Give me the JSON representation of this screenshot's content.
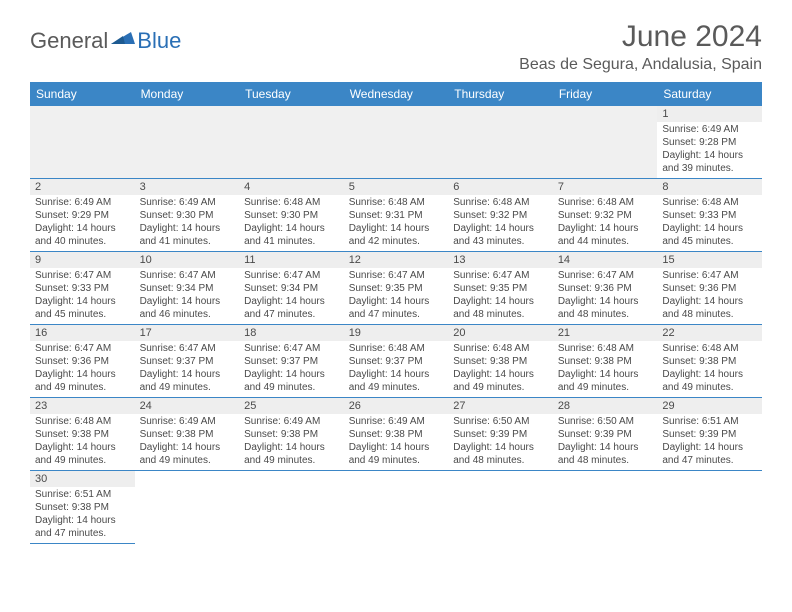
{
  "logo": {
    "general": "General",
    "blue": "Blue"
  },
  "title": "June 2024",
  "location": "Beas de Segura, Andalusia, Spain",
  "colors": {
    "header_bg": "#3b86c6",
    "header_text": "#ffffff",
    "border": "#3b86c6",
    "daynum_bg": "#eeeeee",
    "text": "#4a4a4a",
    "logo_gray": "#5a5a5a",
    "logo_blue": "#2a6fb5",
    "blank_row_bg": "#f0f0f0"
  },
  "weekdays": [
    "Sunday",
    "Monday",
    "Tuesday",
    "Wednesday",
    "Thursday",
    "Friday",
    "Saturday"
  ],
  "weeks": [
    [
      null,
      null,
      null,
      null,
      null,
      null,
      {
        "n": "1",
        "sunrise": "6:49 AM",
        "sunset": "9:28 PM",
        "daylight": "14 hours and 39 minutes."
      }
    ],
    [
      {
        "n": "2",
        "sunrise": "6:49 AM",
        "sunset": "9:29 PM",
        "daylight": "14 hours and 40 minutes."
      },
      {
        "n": "3",
        "sunrise": "6:49 AM",
        "sunset": "9:30 PM",
        "daylight": "14 hours and 41 minutes."
      },
      {
        "n": "4",
        "sunrise": "6:48 AM",
        "sunset": "9:30 PM",
        "daylight": "14 hours and 41 minutes."
      },
      {
        "n": "5",
        "sunrise": "6:48 AM",
        "sunset": "9:31 PM",
        "daylight": "14 hours and 42 minutes."
      },
      {
        "n": "6",
        "sunrise": "6:48 AM",
        "sunset": "9:32 PM",
        "daylight": "14 hours and 43 minutes."
      },
      {
        "n": "7",
        "sunrise": "6:48 AM",
        "sunset": "9:32 PM",
        "daylight": "14 hours and 44 minutes."
      },
      {
        "n": "8",
        "sunrise": "6:48 AM",
        "sunset": "9:33 PM",
        "daylight": "14 hours and 45 minutes."
      }
    ],
    [
      {
        "n": "9",
        "sunrise": "6:47 AM",
        "sunset": "9:33 PM",
        "daylight": "14 hours and 45 minutes."
      },
      {
        "n": "10",
        "sunrise": "6:47 AM",
        "sunset": "9:34 PM",
        "daylight": "14 hours and 46 minutes."
      },
      {
        "n": "11",
        "sunrise": "6:47 AM",
        "sunset": "9:34 PM",
        "daylight": "14 hours and 47 minutes."
      },
      {
        "n": "12",
        "sunrise": "6:47 AM",
        "sunset": "9:35 PM",
        "daylight": "14 hours and 47 minutes."
      },
      {
        "n": "13",
        "sunrise": "6:47 AM",
        "sunset": "9:35 PM",
        "daylight": "14 hours and 48 minutes."
      },
      {
        "n": "14",
        "sunrise": "6:47 AM",
        "sunset": "9:36 PM",
        "daylight": "14 hours and 48 minutes."
      },
      {
        "n": "15",
        "sunrise": "6:47 AM",
        "sunset": "9:36 PM",
        "daylight": "14 hours and 48 minutes."
      }
    ],
    [
      {
        "n": "16",
        "sunrise": "6:47 AM",
        "sunset": "9:36 PM",
        "daylight": "14 hours and 49 minutes."
      },
      {
        "n": "17",
        "sunrise": "6:47 AM",
        "sunset": "9:37 PM",
        "daylight": "14 hours and 49 minutes."
      },
      {
        "n": "18",
        "sunrise": "6:47 AM",
        "sunset": "9:37 PM",
        "daylight": "14 hours and 49 minutes."
      },
      {
        "n": "19",
        "sunrise": "6:48 AM",
        "sunset": "9:37 PM",
        "daylight": "14 hours and 49 minutes."
      },
      {
        "n": "20",
        "sunrise": "6:48 AM",
        "sunset": "9:38 PM",
        "daylight": "14 hours and 49 minutes."
      },
      {
        "n": "21",
        "sunrise": "6:48 AM",
        "sunset": "9:38 PM",
        "daylight": "14 hours and 49 minutes."
      },
      {
        "n": "22",
        "sunrise": "6:48 AM",
        "sunset": "9:38 PM",
        "daylight": "14 hours and 49 minutes."
      }
    ],
    [
      {
        "n": "23",
        "sunrise": "6:48 AM",
        "sunset": "9:38 PM",
        "daylight": "14 hours and 49 minutes."
      },
      {
        "n": "24",
        "sunrise": "6:49 AM",
        "sunset": "9:38 PM",
        "daylight": "14 hours and 49 minutes."
      },
      {
        "n": "25",
        "sunrise": "6:49 AM",
        "sunset": "9:38 PM",
        "daylight": "14 hours and 49 minutes."
      },
      {
        "n": "26",
        "sunrise": "6:49 AM",
        "sunset": "9:38 PM",
        "daylight": "14 hours and 49 minutes."
      },
      {
        "n": "27",
        "sunrise": "6:50 AM",
        "sunset": "9:39 PM",
        "daylight": "14 hours and 48 minutes."
      },
      {
        "n": "28",
        "sunrise": "6:50 AM",
        "sunset": "9:39 PM",
        "daylight": "14 hours and 48 minutes."
      },
      {
        "n": "29",
        "sunrise": "6:51 AM",
        "sunset": "9:39 PM",
        "daylight": "14 hours and 47 minutes."
      }
    ],
    [
      {
        "n": "30",
        "sunrise": "6:51 AM",
        "sunset": "9:38 PM",
        "daylight": "14 hours and 47 minutes."
      },
      null,
      null,
      null,
      null,
      null,
      null
    ]
  ],
  "labels": {
    "sunrise": "Sunrise:",
    "sunset": "Sunset:",
    "daylight": "Daylight:"
  }
}
